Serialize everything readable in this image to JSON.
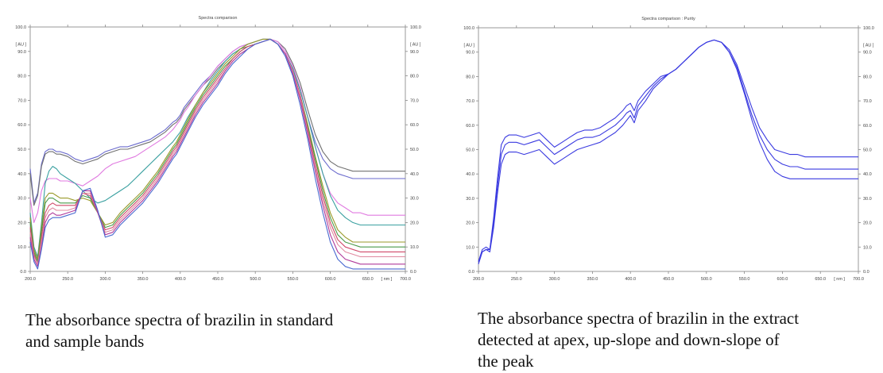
{
  "chart_data": [
    {
      "type": "line",
      "title": "Spectra comparison",
      "x_unit_label": "[ nm ]",
      "y_unit_label": "[ AU ]",
      "xlim": [
        200,
        700
      ],
      "ylim": [
        0,
        100
      ],
      "x_ticks": [
        "200.0",
        "250.0",
        "300.0",
        "350.0",
        "400.0",
        "450.0",
        "500.0",
        "550.0",
        "600.0",
        "650.0",
        "[ nm ]",
        "700.0"
      ],
      "y_ticks": [
        "0.0",
        "10.0",
        "20.0",
        "30.0",
        "40.0",
        "50.0",
        "60.0",
        "70.0",
        "80.0",
        "90.0",
        "100.0"
      ],
      "grid": false,
      "x": [
        200,
        205,
        210,
        215,
        220,
        225,
        230,
        235,
        240,
        250,
        260,
        270,
        280,
        290,
        300,
        310,
        320,
        330,
        340,
        350,
        360,
        370,
        380,
        390,
        395,
        400,
        405,
        410,
        420,
        430,
        440,
        450,
        460,
        470,
        480,
        490,
        500,
        510,
        520,
        530,
        540,
        550,
        560,
        570,
        580,
        590,
        600,
        610,
        620,
        630,
        640,
        650,
        660,
        670,
        680,
        690,
        700
      ],
      "series": [
        {
          "color": "#6a6acd",
          "values": [
            42,
            28,
            32,
            44,
            49,
            50,
            50,
            49,
            49,
            48,
            46,
            45,
            46,
            47,
            49,
            50,
            51,
            51,
            52,
            53,
            54,
            56,
            58,
            61,
            62,
            64,
            67,
            69,
            73,
            77,
            80,
            84,
            87,
            90,
            92,
            93,
            94,
            95,
            95,
            93,
            89,
            83,
            74,
            63,
            53,
            46,
            42,
            40,
            39,
            38,
            38,
            38,
            38,
            38,
            38,
            38,
            38
          ]
        },
        {
          "color": "#707070",
          "values": [
            40,
            27,
            31,
            43,
            48,
            49,
            49,
            48,
            48,
            47,
            45,
            44,
            45,
            46,
            48,
            49,
            50,
            50,
            51,
            52,
            53,
            55,
            57,
            60,
            61,
            63,
            66,
            68,
            72,
            76,
            79,
            83,
            86,
            89,
            91,
            92,
            93,
            94,
            95,
            94,
            91,
            85,
            77,
            66,
            56,
            49,
            45,
            43,
            42,
            41,
            41,
            41,
            41,
            41,
            41,
            41,
            41
          ]
        },
        {
          "color": "#e07ae0",
          "values": [
            30,
            20,
            24,
            33,
            37,
            38,
            38,
            38,
            37,
            37,
            36,
            35,
            37,
            39,
            42,
            44,
            45,
            46,
            47,
            49,
            51,
            53,
            55,
            58,
            60,
            62,
            65,
            67,
            72,
            76,
            80,
            84,
            87,
            90,
            92,
            93,
            94,
            95,
            95,
            94,
            90,
            84,
            75,
            63,
            51,
            40,
            32,
            28,
            26,
            24,
            24,
            23,
            23,
            23,
            23,
            23,
            23
          ]
        },
        {
          "color": "#3aa0a0",
          "values": [
            24,
            10,
            6,
            20,
            36,
            41,
            43,
            42,
            40,
            38,
            36,
            33,
            30,
            28,
            29,
            31,
            33,
            35,
            38,
            41,
            44,
            47,
            50,
            53,
            55,
            57,
            60,
            63,
            68,
            73,
            78,
            82,
            86,
            89,
            91,
            93,
            94,
            95,
            95,
            93,
            89,
            83,
            74,
            63,
            51,
            40,
            31,
            25,
            22,
            20,
            19,
            19,
            19,
            19,
            19,
            19,
            19
          ]
        },
        {
          "color": "#9a9a2a",
          "values": [
            22,
            9,
            5,
            18,
            30,
            32,
            32,
            31,
            30,
            30,
            29,
            30,
            29,
            24,
            19,
            20,
            24,
            27,
            30,
            33,
            37,
            41,
            46,
            51,
            53,
            56,
            59,
            62,
            68,
            73,
            77,
            81,
            85,
            88,
            91,
            93,
            94,
            95,
            95,
            93,
            89,
            82,
            72,
            60,
            47,
            35,
            24,
            17,
            14,
            12,
            12,
            12,
            12,
            12,
            12,
            12,
            12
          ]
        },
        {
          "color": "#4a9a4a",
          "values": [
            20,
            8,
            4,
            16,
            28,
            30,
            30,
            29,
            28,
            28,
            28,
            31,
            30,
            24,
            18,
            19,
            23,
            26,
            29,
            32,
            36,
            40,
            45,
            50,
            52,
            55,
            58,
            61,
            67,
            72,
            76,
            80,
            84,
            87,
            90,
            92,
            93,
            94,
            95,
            93,
            89,
            82,
            72,
            59,
            46,
            33,
            22,
            15,
            12,
            11,
            10,
            10,
            10,
            10,
            10,
            10,
            10
          ]
        },
        {
          "color": "#d04a6a",
          "values": [
            18,
            7,
            3,
            14,
            24,
            27,
            28,
            27,
            27,
            27,
            27,
            32,
            31,
            24,
            17,
            18,
            22,
            25,
            28,
            31,
            35,
            39,
            44,
            49,
            51,
            54,
            57,
            60,
            66,
            71,
            75,
            79,
            83,
            87,
            90,
            92,
            93,
            94,
            95,
            93,
            89,
            82,
            72,
            58,
            44,
            31,
            20,
            13,
            10,
            9,
            8,
            8,
            8,
            8,
            8,
            8,
            8
          ]
        },
        {
          "color": "#e08aa0",
          "values": [
            16,
            6,
            3,
            12,
            22,
            25,
            26,
            25,
            25,
            25,
            26,
            32,
            32,
            24,
            16,
            17,
            21,
            24,
            27,
            30,
            34,
            38,
            43,
            48,
            50,
            53,
            56,
            59,
            65,
            70,
            74,
            78,
            82,
            86,
            89,
            91,
            93,
            94,
            95,
            93,
            89,
            82,
            71,
            57,
            42,
            29,
            18,
            11,
            8,
            7,
            6,
            6,
            6,
            6,
            6,
            6,
            6
          ]
        },
        {
          "color": "#b03a9a",
          "values": [
            14,
            5,
            2,
            10,
            20,
            23,
            24,
            23,
            23,
            24,
            25,
            33,
            33,
            24,
            15,
            16,
            20,
            23,
            26,
            29,
            33,
            37,
            42,
            47,
            49,
            52,
            55,
            58,
            64,
            69,
            73,
            77,
            82,
            86,
            89,
            91,
            93,
            94,
            95,
            93,
            89,
            81,
            70,
            56,
            41,
            27,
            15,
            8,
            5,
            4,
            3,
            3,
            3,
            3,
            3,
            3,
            3
          ]
        },
        {
          "color": "#4a6ad0",
          "values": [
            12,
            4,
            1,
            9,
            18,
            21,
            22,
            22,
            22,
            23,
            24,
            33,
            34,
            25,
            14,
            15,
            19,
            22,
            25,
            28,
            32,
            36,
            41,
            46,
            48,
            51,
            54,
            57,
            63,
            68,
            72,
            76,
            81,
            85,
            88,
            91,
            93,
            94,
            95,
            93,
            88,
            80,
            68,
            54,
            38,
            24,
            12,
            5,
            2,
            1,
            1,
            1,
            1,
            1,
            1,
            1,
            1
          ]
        }
      ]
    },
    {
      "type": "line",
      "title": "Spectra comparison : Purity",
      "x_unit_label": "[ nm ]",
      "y_unit_label": "[ AU ]",
      "xlim": [
        200,
        700
      ],
      "ylim": [
        0,
        100
      ],
      "x_ticks": [
        "200.0",
        "250.0",
        "300.0",
        "350.0",
        "400.0",
        "450.0",
        "500.0",
        "550.0",
        "600.0",
        "650.0",
        "[ nm ]",
        "700.0"
      ],
      "y_ticks": [
        "0.0",
        "10.0",
        "20.0",
        "30.0",
        "40.0",
        "50.0",
        "60.0",
        "70.0",
        "80.0",
        "90.0",
        "100.0"
      ],
      "grid": false,
      "x": [
        200,
        205,
        210,
        215,
        220,
        225,
        230,
        235,
        240,
        245,
        250,
        260,
        270,
        280,
        290,
        300,
        310,
        320,
        330,
        340,
        350,
        360,
        370,
        380,
        390,
        395,
        400,
        405,
        410,
        420,
        430,
        440,
        450,
        460,
        470,
        480,
        490,
        500,
        510,
        520,
        530,
        540,
        550,
        560,
        570,
        580,
        590,
        600,
        610,
        620,
        630,
        640,
        650,
        660,
        670,
        680,
        690,
        700
      ],
      "series": [
        {
          "color": "#3a3ae0",
          "values": [
            4,
            9,
            10,
            9,
            22,
            38,
            52,
            55,
            56,
            56,
            56,
            55,
            56,
            57,
            54,
            51,
            53,
            55,
            57,
            58,
            58,
            59,
            61,
            63,
            66,
            68,
            69,
            66,
            70,
            74,
            77,
            80,
            81,
            83,
            86,
            89,
            92,
            94,
            95,
            94,
            91,
            85,
            76,
            67,
            59,
            54,
            50,
            49,
            48,
            48,
            47,
            47,
            47,
            47,
            47,
            47,
            47,
            47
          ]
        },
        {
          "color": "#3a3ae0",
          "values": [
            4,
            8,
            9,
            9,
            20,
            35,
            48,
            52,
            53,
            53,
            53,
            52,
            53,
            54,
            51,
            48,
            50,
            52,
            54,
            55,
            55,
            56,
            58,
            60,
            63,
            65,
            66,
            63,
            68,
            72,
            76,
            79,
            81,
            83,
            86,
            89,
            92,
            94,
            95,
            94,
            90,
            84,
            74,
            64,
            56,
            50,
            46,
            44,
            43,
            43,
            42,
            42,
            42,
            42,
            42,
            42,
            42,
            42
          ]
        },
        {
          "color": "#3a3ae0",
          "values": [
            3,
            8,
            9,
            8,
            18,
            32,
            44,
            48,
            49,
            49,
            49,
            48,
            49,
            50,
            47,
            44,
            46,
            48,
            50,
            51,
            52,
            53,
            55,
            57,
            60,
            62,
            64,
            61,
            66,
            70,
            75,
            78,
            81,
            83,
            86,
            89,
            92,
            94,
            95,
            94,
            90,
            83,
            73,
            62,
            53,
            46,
            41,
            39,
            38,
            38,
            38,
            38,
            38,
            38,
            38,
            38,
            38,
            38
          ]
        }
      ]
    }
  ],
  "captions": {
    "left_line1": "The absorbance spectra of brazilin in standard",
    "left_line2": "and sample bands",
    "right_line1": "The absorbance spectra of brazilin in the extract",
    "right_line2": "detected at apex, up-slope and down-slope of",
    "right_line3": "the peak"
  }
}
